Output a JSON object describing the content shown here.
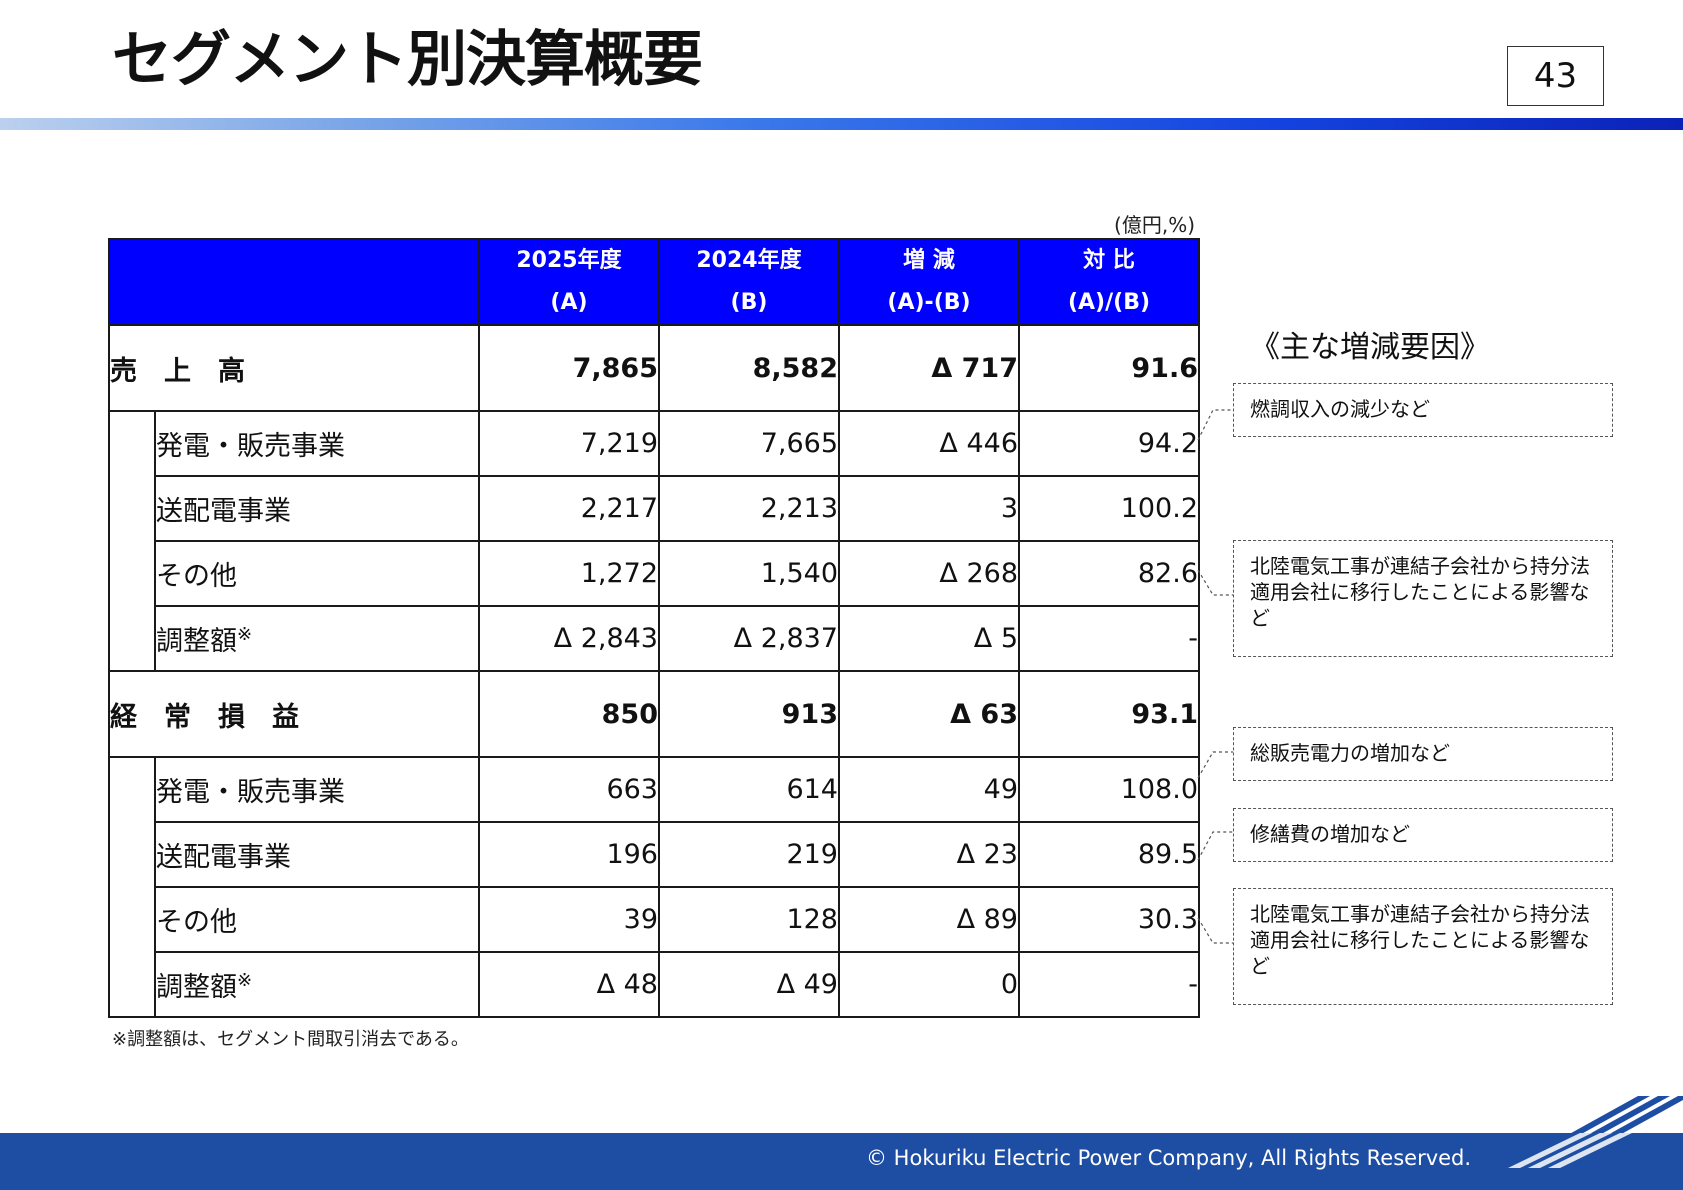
{
  "header": {
    "title": "セグメント別決算概要",
    "page_number": "43"
  },
  "table": {
    "unit": "(億円,%)",
    "columns": [
      {
        "label": "2025年度",
        "sub": "(A)"
      },
      {
        "label": "2024年度",
        "sub": "(B)"
      },
      {
        "label": "増 減",
        "sub": "(A)-(B)"
      },
      {
        "label": "対 比",
        "sub": "(A)/(B)"
      }
    ],
    "sections": [
      {
        "label": "売　上　高",
        "values": [
          "7,865",
          "8,582",
          "Δ 717",
          "91.6"
        ],
        "rows": [
          {
            "label": "発電・販売事業",
            "mark": "",
            "values": [
              "7,219",
              "7,665",
              "Δ 446",
              "94.2"
            ]
          },
          {
            "label": "送配電事業",
            "mark": "",
            "values": [
              "2,217",
              "2,213",
              "3",
              "100.2"
            ]
          },
          {
            "label": "その他",
            "mark": "",
            "values": [
              "1,272",
              "1,540",
              "Δ 268",
              "82.6"
            ]
          },
          {
            "label": "調整額",
            "mark": "※",
            "values": [
              "Δ 2,843",
              "Δ 2,837",
              "Δ 5",
              "-"
            ]
          }
        ]
      },
      {
        "label": "経　常　損　益",
        "values": [
          "850",
          "913",
          "Δ 63",
          "93.1"
        ],
        "rows": [
          {
            "label": "発電・販売事業",
            "mark": "",
            "values": [
              "663",
              "614",
              "49",
              "108.0"
            ]
          },
          {
            "label": "送配電事業",
            "mark": "",
            "values": [
              "196",
              "219",
              "Δ 23",
              "89.5"
            ]
          },
          {
            "label": "その他",
            "mark": "",
            "values": [
              "39",
              "128",
              "Δ 89",
              "30.3"
            ]
          },
          {
            "label": "調整額",
            "mark": "※",
            "values": [
              "Δ 48",
              "Δ 49",
              "0",
              "-"
            ]
          }
        ]
      }
    ],
    "footnote": "※調整額は、セグメント間取引消去である。"
  },
  "factors": {
    "title": "《主な増減要因》",
    "notes": [
      "燃調収入の減少など",
      "北陸電気工事が連結子会社から持分法適用会社に移行したことによる影響など",
      "総販売電力の増加など",
      "修繕費の増加など",
      "北陸電気工事が連結子会社から持分法適用会社に移行したことによる影響など"
    ]
  },
  "footer": {
    "copyright": "© Hokuriku Electric Power Company, All  Rights  Reserved."
  },
  "colors": {
    "header_fill": "#0000ff",
    "footer_bar": "#1e4ea4",
    "accent_gradient_end": "#0b22b8"
  }
}
